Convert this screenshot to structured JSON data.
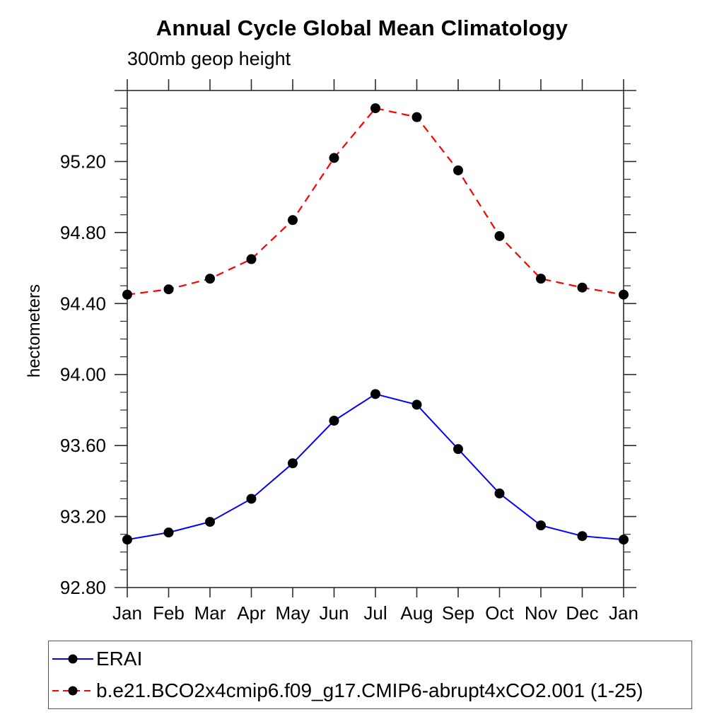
{
  "chart_data": {
    "type": "line",
    "title": "Annual Cycle Global Mean Climatology",
    "subtitle": "300mb geop height",
    "ylabel": "hectometers",
    "xlabel": "",
    "categories": [
      "Jan",
      "Feb",
      "Mar",
      "Apr",
      "May",
      "Jun",
      "Jul",
      "Aug",
      "Sep",
      "Oct",
      "Nov",
      "Dec",
      "Jan"
    ],
    "ylim": [
      92.8,
      95.6
    ],
    "y_major_tick_values": [
      92.8,
      93.2,
      93.6,
      94.0,
      94.4,
      94.8,
      95.2
    ],
    "y_major_tick_labels": [
      "92.80",
      "93.20",
      "93.60",
      "94.00",
      "94.40",
      "94.80",
      "95.20"
    ],
    "y_unlabeled_major_ticks": [
      95.6
    ],
    "y_minor_step": 0.1,
    "grid": false,
    "legend_position": "bottom-left-box",
    "series": [
      {
        "name": "ERAI",
        "color": "#0000ff",
        "line_style": "solid",
        "marker": "filled-circle",
        "marker_color": "#000000",
        "values": [
          93.07,
          93.11,
          93.17,
          93.3,
          93.5,
          93.74,
          93.89,
          93.83,
          93.58,
          93.33,
          93.15,
          93.09,
          93.07
        ]
      },
      {
        "name": "b.e21.BCO2x4cmip6.f09_g17.CMIP6-abrupt4xCO2.001 (1-25)",
        "color": "#ff0000",
        "line_style": "dashed",
        "marker": "filled-circle",
        "marker_color": "#000000",
        "values": [
          94.45,
          94.48,
          94.54,
          94.65,
          94.87,
          95.22,
          95.5,
          95.45,
          95.15,
          94.78,
          94.54,
          94.49,
          94.45
        ]
      }
    ],
    "axis_color": "#2b2b2b"
  }
}
